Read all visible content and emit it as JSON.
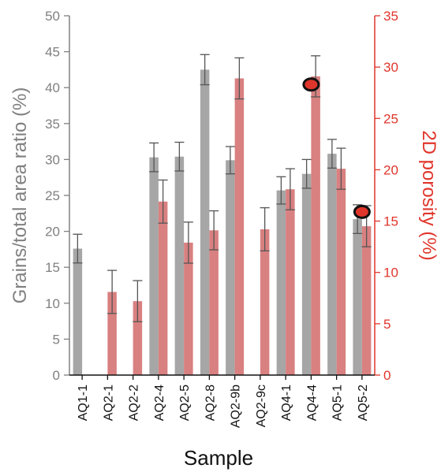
{
  "chart_data": {
    "type": "bar",
    "categories": [
      "AQ1-1",
      "AQ2-1",
      "AQ2-2",
      "AQ2-4",
      "AQ2-5",
      "AQ2-8",
      "AQ2-9b",
      "AQ2-9c",
      "AQ4-1",
      "AQ4-4",
      "AQ5-1",
      "AQ5-2"
    ],
    "series": [
      {
        "axis": "left",
        "color": "#a6a6a6",
        "values": [
          17.6,
          null,
          null,
          30.3,
          30.4,
          42.5,
          29.9,
          null,
          25.7,
          28.0,
          30.8,
          21.7
        ],
        "errors": [
          2.0,
          null,
          null,
          2.0,
          2.0,
          2.1,
          1.9,
          null,
          1.9,
          2.0,
          2.0,
          2.0
        ]
      },
      {
        "axis": "right",
        "color": "#d98080",
        "values": [
          null,
          8.1,
          7.2,
          16.9,
          12.9,
          14.1,
          28.9,
          14.2,
          18.1,
          29.1,
          20.1,
          14.5
        ],
        "errors": [
          null,
          2.1,
          2.0,
          2.1,
          2.0,
          1.9,
          2.0,
          2.1,
          2.0,
          2.0,
          2.0,
          2.0
        ]
      }
    ],
    "highlights": [
      {
        "category": "AQ4-4",
        "axis": "right",
        "value": 28.3
      },
      {
        "category": "AQ5-2",
        "axis": "right",
        "value": 15.9
      }
    ],
    "left_axis": {
      "label": "Grains/total area ratio (%)",
      "ylim": [
        0,
        50
      ],
      "ticks": [
        "0",
        "5",
        "10",
        "15",
        "20",
        "25",
        "30",
        "35",
        "40",
        "45",
        "50"
      ],
      "color": "#808080"
    },
    "right_axis": {
      "label": "2D porosity (%)",
      "ylim": [
        0,
        35
      ],
      "ticks": [
        "0",
        "5",
        "10",
        "15",
        "20",
        "25",
        "30",
        "35"
      ],
      "color": "#e0352b"
    },
    "xlabel": "Sample",
    "grid": false,
    "legend": "none"
  }
}
